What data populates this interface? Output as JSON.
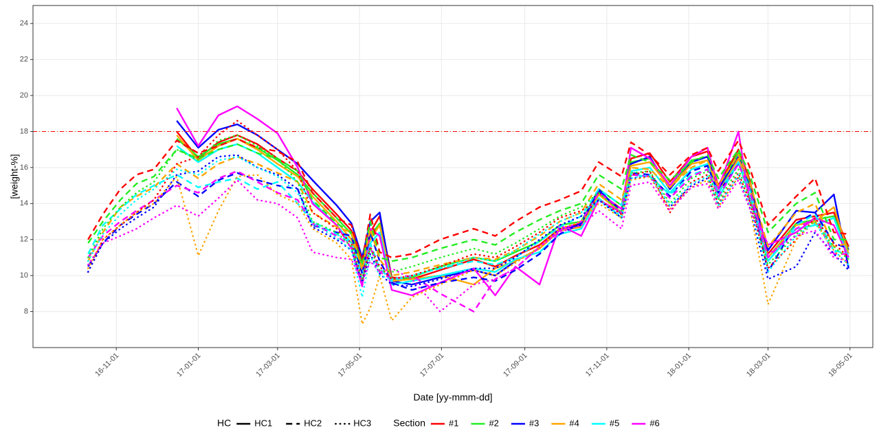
{
  "chart_data": {
    "type": "line",
    "x_label": "Date [yy-mmm-dd]",
    "y_label": "[weight-%]",
    "xlim": [
      "2016-08-31",
      "2018-05-18"
    ],
    "ylim": [
      6,
      25
    ],
    "xticks": [
      {
        "value": "2016-11-01",
        "label": "16-11-01"
      },
      {
        "value": "2017-01-01",
        "label": "17-01-01"
      },
      {
        "value": "2017-03-01",
        "label": "17-03-01"
      },
      {
        "value": "2017-05-01",
        "label": "17-05-01"
      },
      {
        "value": "2017-07-01",
        "label": "17-07-01"
      },
      {
        "value": "2017-09-01",
        "label": "17-09-01"
      },
      {
        "value": "2017-11-01",
        "label": "17-11-01"
      },
      {
        "value": "2018-01-01",
        "label": "18-01-01"
      },
      {
        "value": "2018-03-01",
        "label": "18-03-01"
      },
      {
        "value": "2018-05-01",
        "label": "18-05-01"
      }
    ],
    "yticks": [
      8,
      10,
      12,
      14,
      16,
      18,
      20,
      22,
      24
    ],
    "grid": true,
    "reference_line": {
      "value": 18,
      "color": "#ff0000"
    },
    "legend": {
      "position": "bottom",
      "linetype": {
        "title": "HC",
        "items": [
          {
            "name": "HC1",
            "dash": "solid"
          },
          {
            "name": "HC2",
            "dash": "dashed"
          },
          {
            "name": "HC3",
            "dash": "dotted"
          }
        ]
      },
      "color": {
        "title": "Section",
        "items": [
          {
            "name": "#1",
            "color": "#ff0000"
          },
          {
            "name": "#2",
            "color": "#22ee22"
          },
          {
            "name": "#3",
            "color": "#0000ff"
          },
          {
            "name": "#4",
            "color": "#ffa500"
          },
          {
            "name": "#5",
            "color": "#00ffff"
          },
          {
            "name": "#6",
            "color": "#ff00ff"
          }
        ]
      }
    },
    "x": [
      "2016-10-11",
      "2016-10-22",
      "2016-11-04",
      "2016-11-16",
      "2016-11-29",
      "2016-12-16",
      "2017-01-01",
      "2017-01-16",
      "2017-01-30",
      "2017-02-14",
      "2017-03-01",
      "2017-03-16",
      "2017-03-27",
      "2017-04-14",
      "2017-04-25",
      "2017-05-03",
      "2017-05-09",
      "2017-05-16",
      "2017-05-25",
      "2017-06-09",
      "2017-06-30",
      "2017-07-25",
      "2017-08-10",
      "2017-08-25",
      "2017-09-12",
      "2017-09-27",
      "2017-10-13",
      "2017-10-26",
      "2017-11-12",
      "2017-11-19",
      "2017-12-03",
      "2017-12-18",
      "2018-01-03",
      "2018-01-15",
      "2018-01-23",
      "2018-02-07",
      "2018-02-15",
      "2018-03-01",
      "2018-03-22",
      "2018-04-05",
      "2018-04-19",
      "2018-04-30"
    ],
    "series": [
      {
        "hc": "HC1",
        "section": "#1",
        "values": [
          null,
          null,
          null,
          null,
          null,
          18.0,
          16.5,
          17.4,
          17.8,
          17.3,
          16.5,
          15.8,
          14.8,
          13.4,
          12.5,
          10.9,
          12.4,
          13.3,
          9.9,
          9.8,
          10.3,
          10.9,
          10.5,
          11.1,
          11.7,
          12.6,
          12.9,
          14.6,
          13.7,
          16.5,
          16.8,
          15.2,
          16.6,
          16.9,
          15.0,
          17.0,
          15.4,
          11.2,
          13.1,
          13.3,
          13.5,
          11.6
        ]
      },
      {
        "hc": "HC1",
        "section": "#2",
        "values": [
          null,
          null,
          null,
          null,
          null,
          17.6,
          16.6,
          17.3,
          17.6,
          17.1,
          16.4,
          15.6,
          14.6,
          13.2,
          12.3,
          10.6,
          12.2,
          12.9,
          9.8,
          9.9,
          10.5,
          11.0,
          10.8,
          11.3,
          11.9,
          12.8,
          13.0,
          14.8,
          13.9,
          16.3,
          16.5,
          15.0,
          16.4,
          16.6,
          14.9,
          16.8,
          15.2,
          11.0,
          12.9,
          13.1,
          13.3,
          11.4
        ]
      },
      {
        "hc": "HC1",
        "section": "#3",
        "values": [
          null,
          null,
          null,
          null,
          null,
          18.6,
          17.1,
          18.1,
          18.4,
          17.8,
          17.0,
          16.2,
          15.3,
          13.9,
          12.9,
          11.0,
          13.0,
          13.5,
          9.7,
          9.5,
          9.9,
          10.3,
          10.0,
          10.8,
          11.5,
          12.6,
          12.8,
          14.8,
          13.4,
          16.2,
          16.6,
          14.8,
          16.3,
          16.6,
          14.8,
          16.6,
          15.0,
          11.4,
          13.6,
          13.5,
          14.5,
          10.4
        ]
      },
      {
        "hc": "HC1",
        "section": "#4",
        "values": [
          null,
          null,
          null,
          null,
          null,
          17.8,
          16.4,
          17.2,
          17.6,
          17.0,
          16.2,
          15.5,
          14.4,
          13.0,
          12.0,
          10.4,
          12.0,
          12.8,
          9.7,
          9.8,
          10.0,
          9.5,
          10.4,
          10.8,
          11.5,
          12.5,
          12.7,
          14.5,
          13.5,
          16.1,
          16.3,
          14.9,
          16.2,
          16.4,
          14.6,
          16.5,
          14.9,
          11.0,
          12.8,
          13.0,
          13.8,
          11.2
        ]
      },
      {
        "hc": "HC1",
        "section": "#5",
        "values": [
          null,
          null,
          null,
          null,
          null,
          17.2,
          16.3,
          17.0,
          17.3,
          16.8,
          16.0,
          15.2,
          14.1,
          12.8,
          11.8,
          10.2,
          11.8,
          12.4,
          9.5,
          9.7,
          10.0,
          10.4,
          10.2,
          10.9,
          11.3,
          12.3,
          12.6,
          14.3,
          13.2,
          15.8,
          16.0,
          14.6,
          15.9,
          16.2,
          14.3,
          16.3,
          14.5,
          10.8,
          12.6,
          12.8,
          13.2,
          11.0
        ]
      },
      {
        "hc": "HC1",
        "section": "#6",
        "values": [
          null,
          null,
          null,
          null,
          null,
          19.3,
          17.2,
          18.9,
          19.4,
          18.7,
          17.9,
          16.0,
          14.0,
          12.8,
          11.5,
          9.4,
          12.6,
          12.2,
          9.2,
          8.9,
          9.6,
          10.4,
          8.9,
          10.5,
          9.5,
          12.8,
          12.2,
          14.2,
          13.5,
          17.1,
          16.5,
          15.0,
          16.6,
          17.1,
          14.8,
          18.0,
          14.2,
          11.7,
          12.4,
          13.2,
          12.8,
          11.0
        ]
      },
      {
        "hc": "HC2",
        "section": "#1",
        "values": [
          12.0,
          13.4,
          14.8,
          15.6,
          15.9,
          17.5,
          16.8,
          17.2,
          17.6,
          17.1,
          16.9,
          16.3,
          14.6,
          13.2,
          12.8,
          10.8,
          13.4,
          11.3,
          11.0,
          11.2,
          12.0,
          12.6,
          12.2,
          13.0,
          13.8,
          14.2,
          14.7,
          16.3,
          15.5,
          17.4,
          16.7,
          15.6,
          16.7,
          17.1,
          15.8,
          17.5,
          16.1,
          12.8,
          14.4,
          15.4,
          12.4,
          12.3
        ]
      },
      {
        "hc": "HC2",
        "section": "#2",
        "values": [
          11.8,
          13.0,
          14.2,
          15.1,
          15.5,
          17.0,
          16.5,
          17.0,
          17.3,
          16.8,
          16.5,
          15.8,
          14.2,
          12.9,
          12.4,
          10.6,
          13.0,
          11.0,
          10.8,
          11.0,
          11.5,
          12.0,
          11.7,
          12.4,
          13.1,
          13.6,
          14.0,
          15.6,
          14.8,
          16.7,
          16.3,
          15.3,
          16.3,
          16.7,
          15.4,
          17.0,
          15.7,
          12.4,
          14.0,
          14.6,
          12.0,
          12.0
        ]
      },
      {
        "hc": "HC2",
        "section": "#3",
        "values": [
          10.5,
          11.8,
          12.8,
          13.4,
          14.0,
          15.2,
          14.4,
          15.3,
          15.7,
          15.3,
          15.0,
          14.8,
          12.8,
          12.4,
          12.2,
          10.1,
          12.4,
          10.8,
          9.6,
          9.2,
          9.6,
          9.9,
          9.7,
          10.3,
          11.2,
          12.3,
          12.9,
          14.7,
          13.6,
          15.7,
          15.6,
          14.4,
          15.8,
          16.1,
          14.6,
          16.2,
          15.0,
          10.2,
          12.9,
          13.5,
          11.8,
          11.5
        ]
      },
      {
        "hc": "HC2",
        "section": "#4",
        "values": [
          10.8,
          12.4,
          13.8,
          14.4,
          14.9,
          16.2,
          15.4,
          16.2,
          16.6,
          16.2,
          15.7,
          15.2,
          13.5,
          12.7,
          12.4,
          10.3,
          12.6,
          10.9,
          10.0,
          10.2,
          10.6,
          11.0,
          10.9,
          11.4,
          12.2,
          13.0,
          13.5,
          15.1,
          14.2,
          16.0,
          15.9,
          14.9,
          16.0,
          16.4,
          15.0,
          16.7,
          15.3,
          11.6,
          13.5,
          14.0,
          11.6,
          11.8
        ]
      },
      {
        "hc": "HC2",
        "section": "#5",
        "values": [
          11.2,
          12.8,
          13.7,
          14.5,
          15.0,
          15.6,
          14.9,
          15.2,
          15.4,
          14.8,
          15.2,
          14.0,
          13.0,
          12.3,
          11.8,
          9.8,
          11.8,
          10.4,
          9.7,
          10.0,
          10.4,
          10.8,
          10.6,
          11.0,
          11.9,
          12.7,
          13.3,
          14.8,
          13.9,
          15.6,
          15.5,
          14.5,
          15.6,
          15.9,
          14.6,
          16.3,
          14.9,
          10.8,
          12.8,
          13.4,
          11.4,
          11.2
        ]
      },
      {
        "hc": "HC2",
        "section": "#6",
        "values": [
          11.0,
          12.2,
          13.0,
          13.6,
          14.2,
          15.0,
          14.6,
          15.4,
          15.8,
          15.2,
          14.6,
          14.2,
          12.9,
          12.2,
          11.6,
          9.6,
          11.6,
          10.2,
          9.8,
          10.0,
          9.0,
          8.0,
          9.8,
          10.4,
          11.6,
          12.5,
          13.0,
          14.6,
          13.7,
          15.6,
          15.5,
          14.3,
          15.5,
          15.9,
          14.4,
          16.2,
          14.8,
          11.0,
          12.6,
          13.2,
          11.2,
          11.2
        ]
      },
      {
        "hc": "HC3",
        "section": "#1",
        "values": [
          10.2,
          12.0,
          12.8,
          13.5,
          14.2,
          16.2,
          16.6,
          17.8,
          18.6,
          17.8,
          17.0,
          15.8,
          13.5,
          12.6,
          11.8,
          9.8,
          11.6,
          10.5,
          9.8,
          10.0,
          10.5,
          11.2,
          11.0,
          11.6,
          12.4,
          13.2,
          13.6,
          14.2,
          13.4,
          15.6,
          15.8,
          13.5,
          15.2,
          15.6,
          14.0,
          15.7,
          14.2,
          10.4,
          12.0,
          13.2,
          11.8,
          11.0
        ]
      },
      {
        "hc": "HC3",
        "section": "#2",
        "values": [
          11.0,
          12.6,
          13.8,
          14.6,
          15.2,
          17.0,
          16.4,
          17.5,
          17.8,
          17.2,
          16.5,
          15.2,
          13.0,
          12.4,
          11.6,
          9.7,
          11.5,
          10.3,
          10.2,
          10.5,
          11.0,
          11.5,
          11.2,
          11.8,
          12.6,
          13.3,
          13.8,
          14.6,
          13.5,
          15.7,
          15.8,
          14.0,
          15.4,
          15.8,
          14.2,
          15.9,
          14.4,
          10.6,
          12.3,
          13.0,
          11.6,
          10.9
        ]
      },
      {
        "hc": "HC3",
        "section": "#3",
        "values": [
          10.2,
          11.8,
          12.6,
          13.2,
          13.8,
          15.6,
          15.8,
          16.6,
          16.7,
          16.0,
          15.6,
          14.8,
          12.7,
          12.0,
          11.4,
          9.6,
          11.2,
          10.1,
          9.5,
          9.4,
          9.8,
          10.4,
          10.4,
          11.0,
          12.0,
          12.8,
          13.3,
          14.2,
          13.2,
          15.4,
          15.5,
          13.8,
          15.0,
          15.4,
          13.9,
          15.5,
          13.9,
          9.8,
          10.5,
          12.4,
          11.2,
          10.3
        ]
      },
      {
        "hc": "HC3",
        "section": "#4",
        "values": [
          10.4,
          12.0,
          12.8,
          13.5,
          14.0,
          15.5,
          11.1,
          13.6,
          15.5,
          15.6,
          14.5,
          14.0,
          12.6,
          11.8,
          10.9,
          7.3,
          8.2,
          10.0,
          7.5,
          8.8,
          9.5,
          10.3,
          10.0,
          10.7,
          11.6,
          12.6,
          13.0,
          14.0,
          13.2,
          15.3,
          15.5,
          13.7,
          14.9,
          15.3,
          13.8,
          15.5,
          14.0,
          8.4,
          12.0,
          13.0,
          11.4,
          10.6
        ]
      },
      {
        "hc": "HC3",
        "section": "#5",
        "values": [
          10.8,
          12.3,
          13.4,
          14.2,
          14.8,
          15.9,
          15.6,
          16.4,
          16.6,
          16.0,
          15.5,
          14.6,
          12.9,
          12.1,
          11.4,
          8.8,
          11.1,
          10.0,
          9.8,
          10.0,
          10.4,
          11.0,
          10.8,
          11.4,
          12.3,
          13.0,
          13.5,
          14.2,
          13.3,
          15.4,
          15.6,
          13.9,
          15.1,
          15.5,
          13.9,
          15.6,
          14.0,
          10.2,
          12.2,
          12.9,
          11.4,
          10.6
        ]
      },
      {
        "hc": "HC3",
        "section": "#6",
        "values": [
          10.6,
          11.8,
          12.2,
          12.6,
          13.2,
          13.9,
          13.3,
          14.3,
          15.3,
          14.2,
          14.0,
          13.2,
          11.3,
          11.0,
          10.9,
          9.6,
          10.8,
          10.2,
          10.4,
          9.8,
          8.0,
          9.5,
          9.8,
          10.4,
          11.6,
          12.4,
          12.8,
          13.6,
          12.6,
          15.0,
          15.2,
          13.6,
          14.9,
          15.1,
          13.7,
          15.3,
          13.8,
          11.2,
          12.2,
          12.5,
          11.0,
          10.8
        ]
      }
    ]
  }
}
